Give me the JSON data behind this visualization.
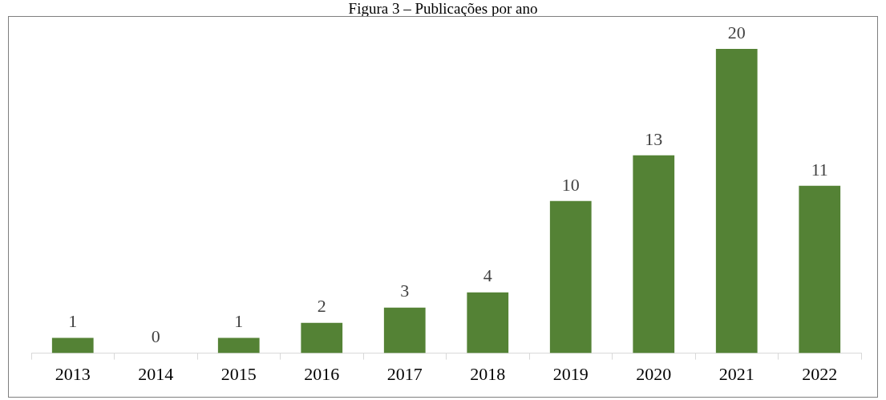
{
  "chart_data": {
    "type": "bar",
    "title": "Figura 3 – Publicações por ano",
    "categories": [
      "2013",
      "2014",
      "2015",
      "2016",
      "2017",
      "2018",
      "2019",
      "2020",
      "2021",
      "2022"
    ],
    "values": [
      1,
      0,
      1,
      2,
      3,
      4,
      10,
      13,
      20,
      11
    ],
    "color": "#548235",
    "data_labels": true,
    "grid": false,
    "legend": false
  }
}
